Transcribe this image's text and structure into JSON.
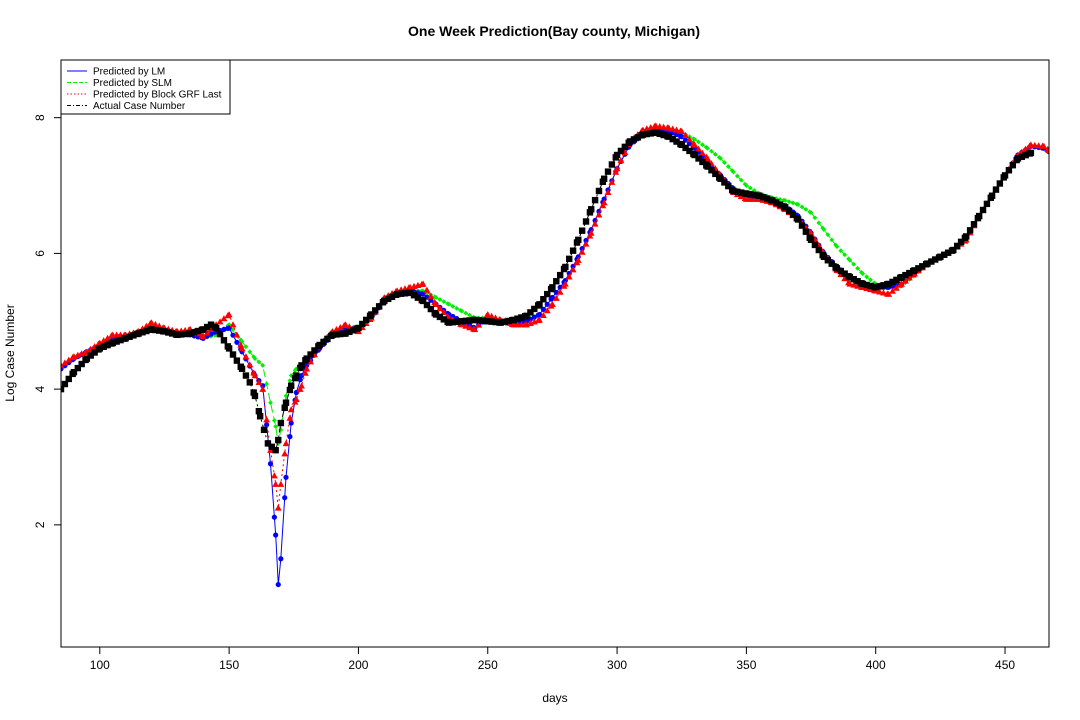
{
  "chart_data": {
    "type": "line",
    "title": "One Week Prediction(Bay county, Michigan)",
    "xlabel": "days",
    "ylabel": "Log Case Number",
    "xlim": [
      85,
      467
    ],
    "ylim": [
      0.2,
      8.85
    ],
    "xticks": [
      100,
      150,
      200,
      250,
      300,
      350,
      400,
      450
    ],
    "yticks": [
      2,
      4,
      6,
      8
    ],
    "grid": false,
    "legend_position": "top-left",
    "series": [
      {
        "name": "Predicted by LM",
        "color": "#0000ff",
        "line": "solid",
        "marker": "circle",
        "x": [
          85,
          90,
          95,
          100,
          105,
          110,
          115,
          120,
          125,
          130,
          135,
          140,
          145,
          150,
          155,
          160,
          163,
          166,
          168,
          169,
          170,
          172,
          174,
          176,
          178,
          180,
          185,
          190,
          195,
          200,
          205,
          210,
          215,
          220,
          225,
          230,
          235,
          240,
          245,
          250,
          255,
          260,
          265,
          270,
          275,
          280,
          285,
          290,
          295,
          300,
          305,
          310,
          315,
          320,
          325,
          330,
          335,
          340,
          345,
          350,
          355,
          360,
          365,
          370,
          375,
          380,
          385,
          390,
          395,
          400,
          405,
          410,
          415,
          420,
          425,
          430,
          435,
          440,
          445,
          450,
          455,
          460,
          465,
          467
        ],
        "y": [
          4.3,
          4.45,
          4.55,
          4.65,
          4.72,
          4.78,
          4.82,
          4.9,
          4.88,
          4.82,
          4.8,
          4.75,
          4.85,
          4.9,
          4.55,
          4.2,
          4.05,
          2.9,
          1.85,
          1.12,
          1.5,
          2.7,
          3.5,
          3.95,
          4.2,
          4.35,
          4.6,
          4.8,
          4.88,
          4.9,
          5.05,
          5.3,
          5.42,
          5.45,
          5.4,
          5.25,
          5.1,
          5.0,
          4.9,
          5.05,
          5.0,
          4.95,
          5.0,
          5.1,
          5.35,
          5.6,
          5.95,
          6.35,
          6.8,
          7.25,
          7.6,
          7.75,
          7.82,
          7.8,
          7.72,
          7.55,
          7.35,
          7.15,
          6.95,
          6.85,
          6.8,
          6.75,
          6.7,
          6.55,
          6.3,
          6.0,
          5.8,
          5.65,
          5.55,
          5.5,
          5.5,
          5.55,
          5.7,
          5.85,
          5.95,
          6.05,
          6.25,
          6.55,
          6.85,
          7.15,
          7.45,
          7.58,
          7.55,
          7.5
        ]
      },
      {
        "name": "Predicted by SLM",
        "color": "#00ee00",
        "line": "dashed",
        "marker": "diamond",
        "x": [
          85,
          90,
          95,
          100,
          105,
          110,
          115,
          120,
          125,
          130,
          135,
          140,
          145,
          150,
          155,
          160,
          163,
          166,
          168,
          169,
          170,
          172,
          174,
          176,
          178,
          180,
          185,
          190,
          195,
          200,
          205,
          210,
          215,
          220,
          225,
          230,
          235,
          240,
          245,
          250,
          255,
          260,
          265,
          270,
          275,
          280,
          285,
          290,
          295,
          300,
          305,
          310,
          315,
          320,
          325,
          330,
          335,
          340,
          345,
          350,
          355,
          360,
          365,
          370,
          375,
          380,
          385,
          390,
          395,
          400,
          405,
          410,
          415,
          420,
          425,
          430,
          435,
          440,
          445,
          450,
          455,
          460,
          465,
          467
        ],
        "y": [
          4.3,
          4.45,
          4.55,
          4.65,
          4.72,
          4.78,
          4.82,
          4.9,
          4.88,
          4.82,
          4.8,
          4.75,
          4.8,
          4.95,
          4.7,
          4.45,
          4.35,
          3.8,
          3.45,
          3.2,
          3.4,
          3.9,
          4.2,
          4.3,
          4.3,
          4.4,
          4.65,
          4.82,
          4.9,
          4.92,
          5.05,
          5.3,
          5.42,
          5.45,
          5.45,
          5.35,
          5.25,
          5.15,
          5.05,
          5.05,
          5.0,
          4.98,
          5.02,
          5.1,
          5.35,
          5.6,
          5.95,
          6.35,
          6.8,
          7.25,
          7.6,
          7.75,
          7.82,
          7.82,
          7.78,
          7.68,
          7.55,
          7.4,
          7.2,
          7.0,
          6.88,
          6.82,
          6.78,
          6.72,
          6.6,
          6.35,
          6.1,
          5.9,
          5.7,
          5.55,
          5.5,
          5.52,
          5.68,
          5.85,
          5.95,
          6.05,
          6.25,
          6.55,
          6.85,
          7.15,
          7.45,
          7.58,
          7.55,
          7.5
        ]
      },
      {
        "name": "Predicted by Block GRF Last",
        "color": "#ff0000",
        "line": "dotted",
        "marker": "triangle",
        "x": [
          85,
          90,
          95,
          100,
          105,
          110,
          115,
          120,
          125,
          130,
          135,
          140,
          145,
          150,
          155,
          160,
          163,
          166,
          168,
          169,
          170,
          172,
          174,
          176,
          178,
          180,
          185,
          190,
          195,
          200,
          205,
          210,
          215,
          220,
          225,
          230,
          235,
          240,
          245,
          250,
          255,
          260,
          265,
          270,
          275,
          280,
          285,
          290,
          295,
          300,
          305,
          310,
          315,
          320,
          325,
          330,
          335,
          340,
          345,
          350,
          355,
          360,
          365,
          370,
          375,
          380,
          385,
          390,
          395,
          400,
          405,
          410,
          415,
          420,
          425,
          430,
          435,
          440,
          445,
          450,
          455,
          460,
          465,
          467
        ],
        "y": [
          4.35,
          4.48,
          4.55,
          4.68,
          4.8,
          4.8,
          4.85,
          4.98,
          4.9,
          4.85,
          4.88,
          4.78,
          4.95,
          5.1,
          4.6,
          4.2,
          4.0,
          3.1,
          2.6,
          2.25,
          2.6,
          3.2,
          3.7,
          3.85,
          4.05,
          4.3,
          4.65,
          4.85,
          4.95,
          4.85,
          5.05,
          5.35,
          5.45,
          5.5,
          5.55,
          5.25,
          5.05,
          4.95,
          4.88,
          5.1,
          5.02,
          4.95,
          4.95,
          5.02,
          5.25,
          5.55,
          5.9,
          6.3,
          6.75,
          7.25,
          7.65,
          7.82,
          7.88,
          7.85,
          7.8,
          7.6,
          7.4,
          7.15,
          6.9,
          6.8,
          6.8,
          6.75,
          6.65,
          6.5,
          6.3,
          6.0,
          5.75,
          5.55,
          5.5,
          5.45,
          5.4,
          5.55,
          5.7,
          5.85,
          5.95,
          6.05,
          6.2,
          6.55,
          6.85,
          7.15,
          7.45,
          7.6,
          7.58,
          7.52
        ]
      },
      {
        "name": "Actual Case Number",
        "color": "#000000",
        "line": "dashdot",
        "marker": "square",
        "x": [
          85,
          90,
          95,
          100,
          105,
          110,
          115,
          120,
          125,
          130,
          135,
          140,
          143,
          145,
          150,
          155,
          158,
          160,
          162,
          165,
          168,
          169,
          170,
          172,
          174,
          176,
          178,
          180,
          185,
          190,
          195,
          200,
          205,
          210,
          215,
          220,
          225,
          230,
          235,
          240,
          245,
          250,
          255,
          260,
          265,
          270,
          275,
          280,
          285,
          290,
          295,
          300,
          305,
          310,
          315,
          320,
          325,
          330,
          335,
          340,
          345,
          350,
          355,
          360,
          365,
          370,
          375,
          380,
          385,
          390,
          395,
          400,
          405,
          410,
          415,
          420,
          425,
          430,
          435,
          440,
          445,
          450,
          455,
          460
        ],
        "y": [
          4.0,
          4.25,
          4.45,
          4.6,
          4.68,
          4.75,
          4.82,
          4.88,
          4.85,
          4.8,
          4.82,
          4.88,
          4.95,
          4.9,
          4.6,
          4.3,
          4.1,
          3.9,
          3.6,
          3.2,
          3.1,
          3.25,
          3.5,
          3.8,
          4.05,
          4.2,
          4.35,
          4.45,
          4.65,
          4.8,
          4.82,
          4.9,
          5.1,
          5.3,
          5.4,
          5.42,
          5.3,
          5.1,
          4.98,
          5.0,
          5.02,
          5.0,
          4.98,
          5.02,
          5.08,
          5.25,
          5.5,
          5.8,
          6.2,
          6.65,
          7.1,
          7.45,
          7.65,
          7.75,
          7.78,
          7.72,
          7.6,
          7.45,
          7.28,
          7.1,
          6.92,
          6.88,
          6.85,
          6.78,
          6.68,
          6.5,
          6.2,
          5.95,
          5.78,
          5.65,
          5.55,
          5.5,
          5.55,
          5.65,
          5.75,
          5.85,
          5.95,
          6.05,
          6.25,
          6.55,
          6.85,
          7.15,
          7.4,
          7.48
        ]
      }
    ]
  }
}
